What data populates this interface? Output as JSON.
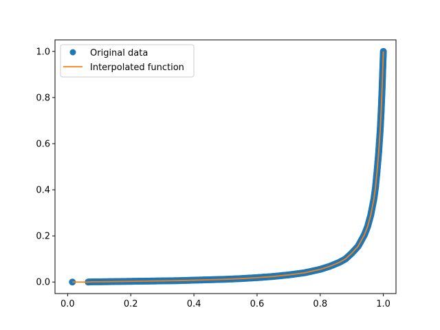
{
  "chart_data": {
    "type": "line",
    "title": "",
    "xlabel": "",
    "ylabel": "",
    "xlim": [
      -0.04,
      1.04
    ],
    "ylim": [
      -0.05,
      1.05
    ],
    "x_ticks": [
      0.0,
      0.2,
      0.4,
      0.6,
      0.8,
      1.0
    ],
    "x_tick_labels": [
      "0.0",
      "0.2",
      "0.4",
      "0.6",
      "0.8",
      "1.0"
    ],
    "y_ticks": [
      0.0,
      0.2,
      0.4,
      0.6,
      0.8,
      1.0
    ],
    "y_tick_labels": [
      "0.0",
      "0.2",
      "0.4",
      "0.6",
      "0.8",
      "1.0"
    ],
    "grid": false,
    "legend": {
      "placement": "upper-left",
      "entries": [
        {
          "label": "Original data",
          "marker": "circle",
          "color": "#1f77b4"
        },
        {
          "label": "Interpolated function",
          "marker": "line",
          "color": "#ff7f0e"
        }
      ]
    },
    "series": [
      {
        "name": "Original data",
        "kind": "scatter",
        "color": "#1f77b4",
        "x": [
          0.015,
          0.065,
          0.08,
          0.1,
          0.15,
          0.2,
          0.25,
          0.3,
          0.35,
          0.4,
          0.45,
          0.5,
          0.55,
          0.6,
          0.65,
          0.7,
          0.75,
          0.8,
          0.83,
          0.86,
          0.88,
          0.9,
          0.92,
          0.94,
          0.95,
          0.96,
          0.97,
          0.975,
          0.98,
          0.985,
          0.99,
          0.993,
          0.996,
          0.998,
          1.0
        ],
        "y": [
          0.0,
          0.0,
          0.001,
          0.001,
          0.002,
          0.003,
          0.004,
          0.005,
          0.006,
          0.008,
          0.01,
          0.012,
          0.015,
          0.019,
          0.024,
          0.031,
          0.04,
          0.055,
          0.068,
          0.085,
          0.1,
          0.125,
          0.155,
          0.205,
          0.24,
          0.29,
          0.36,
          0.41,
          0.48,
          0.56,
          0.66,
          0.74,
          0.84,
          0.92,
          1.0
        ]
      },
      {
        "name": "Interpolated function",
        "kind": "line",
        "color": "#ff7f0e",
        "x": [
          0.015,
          0.065,
          0.08,
          0.1,
          0.15,
          0.2,
          0.25,
          0.3,
          0.35,
          0.4,
          0.45,
          0.5,
          0.55,
          0.6,
          0.65,
          0.7,
          0.75,
          0.8,
          0.83,
          0.86,
          0.88,
          0.9,
          0.92,
          0.94,
          0.95,
          0.96,
          0.97,
          0.975,
          0.98,
          0.985,
          0.99,
          0.993,
          0.996,
          0.998,
          1.0
        ],
        "y": [
          0.0,
          0.0,
          0.001,
          0.001,
          0.002,
          0.003,
          0.004,
          0.005,
          0.006,
          0.008,
          0.01,
          0.012,
          0.015,
          0.019,
          0.024,
          0.031,
          0.04,
          0.055,
          0.068,
          0.085,
          0.1,
          0.125,
          0.155,
          0.205,
          0.24,
          0.29,
          0.36,
          0.41,
          0.48,
          0.56,
          0.66,
          0.74,
          0.84,
          0.92,
          1.0
        ]
      }
    ]
  }
}
